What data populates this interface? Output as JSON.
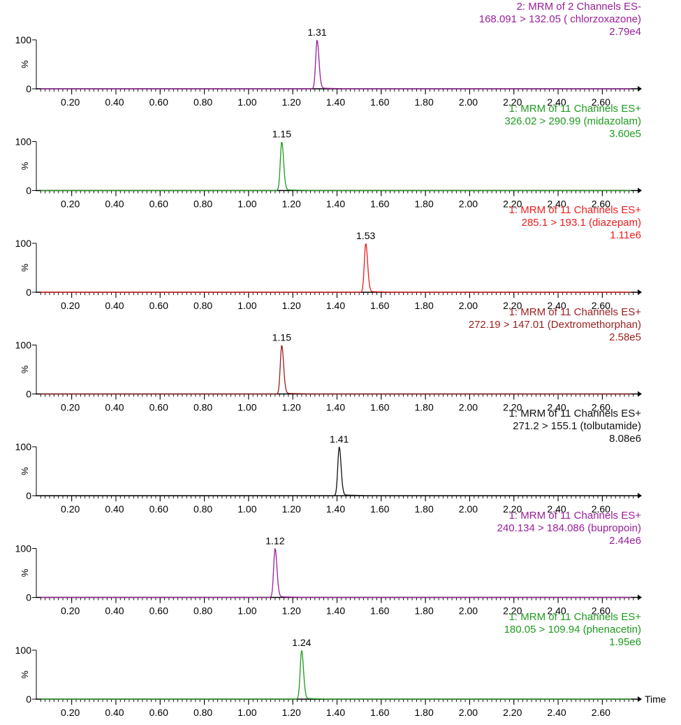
{
  "chart_data": [
    {
      "type": "line",
      "title_lines": [
        "2: MRM of 2 Channels ES-",
        "168.091 > 132.05 ( chlorzoxazone)",
        "2.79e4"
      ],
      "color": "#9b1e9b",
      "peak_rt": 1.31,
      "peak_label": "1.31",
      "ylabel": "%",
      "y_ticks": [
        "100",
        "0"
      ],
      "x_ticks": [
        "0.20",
        "0.40",
        "0.60",
        "0.80",
        "1.00",
        "1.20",
        "1.40",
        "1.60",
        "1.80",
        "2.00",
        "2.20",
        "2.40",
        "2.60"
      ],
      "xlim": [
        0.04,
        2.76
      ],
      "ylim": [
        0,
        100
      ],
      "xlabel": ""
    },
    {
      "type": "line",
      "title_lines": [
        "1: MRM of 11 Channels ES+",
        "326.02 > 290.99 (midazolam)",
        "3.60e5"
      ],
      "color": "#1e9b1e",
      "peak_rt": 1.15,
      "peak_label": "1.15",
      "ylabel": "%",
      "y_ticks": [
        "100",
        "0"
      ],
      "x_ticks": [
        "0.20",
        "0.40",
        "0.60",
        "0.80",
        "1.00",
        "1.20",
        "1.40",
        "1.60",
        "1.80",
        "2.00",
        "2.20",
        "2.40",
        "2.60"
      ],
      "xlim": [
        0.04,
        2.76
      ],
      "ylim": [
        0,
        100
      ],
      "xlabel": ""
    },
    {
      "type": "line",
      "title_lines": [
        "1: MRM of 11 Channels ES+",
        "285.1 > 193.1 (diazepam)",
        "1.11e6"
      ],
      "color": "#ee1c1c",
      "peak_rt": 1.53,
      "peak_label": "1.53",
      "ylabel": "%",
      "y_ticks": [
        "100",
        "0"
      ],
      "x_ticks": [
        "0.20",
        "0.40",
        "0.60",
        "0.80",
        "1.00",
        "1.20",
        "1.40",
        "1.60",
        "1.80",
        "2.00",
        "2.20",
        "2.40",
        "2.60"
      ],
      "xlim": [
        0.04,
        2.76
      ],
      "ylim": [
        0,
        100
      ],
      "xlabel": ""
    },
    {
      "type": "line",
      "title_lines": [
        "1: MRM of 11 Channels ES+",
        "272.19 > 147.01 (Dextromethorphan)",
        "2.58e5"
      ],
      "color": "#9b1e1e",
      "peak_rt": 1.15,
      "peak_label": "1.15",
      "ylabel": "%",
      "y_ticks": [
        "100",
        "0"
      ],
      "x_ticks": [
        "0.20",
        "0.40",
        "0.60",
        "0.80",
        "1.00",
        "1.20",
        "1.40",
        "1.60",
        "1.80",
        "2.00",
        "2.20",
        "2.40",
        "2.60"
      ],
      "xlim": [
        0.04,
        2.76
      ],
      "ylim": [
        0,
        100
      ],
      "xlabel": ""
    },
    {
      "type": "line",
      "title_lines": [
        "1: MRM of 11 Channels ES+",
        "271.2 > 155.1 (tolbutamide)",
        "8.08e6"
      ],
      "color": "#111111",
      "peak_rt": 1.41,
      "peak_label": "1.41",
      "ylabel": "%",
      "y_ticks": [
        "100",
        "0"
      ],
      "x_ticks": [
        "0.20",
        "0.40",
        "0.60",
        "0.80",
        "1.00",
        "1.20",
        "1.40",
        "1.60",
        "1.80",
        "2.00",
        "2.20",
        "2.40",
        "2.60"
      ],
      "xlim": [
        0.04,
        2.76
      ],
      "ylim": [
        0,
        100
      ],
      "xlabel": ""
    },
    {
      "type": "line",
      "title_lines": [
        "1: MRM of 11 Channels ES+",
        "240.134 > 184.086 (bupropoin)",
        "2.44e6"
      ],
      "color": "#9b1e9b",
      "peak_rt": 1.12,
      "peak_label": "1.12",
      "ylabel": "%",
      "y_ticks": [
        "100",
        "0"
      ],
      "x_ticks": [
        "0.20",
        "0.40",
        "0.60",
        "0.80",
        "1.00",
        "1.20",
        "1.40",
        "1.60",
        "1.80",
        "2.00",
        "2.20",
        "2.40",
        "2.60"
      ],
      "xlim": [
        0.04,
        2.76
      ],
      "ylim": [
        0,
        100
      ],
      "xlabel": ""
    },
    {
      "type": "line",
      "title_lines": [
        "1: MRM of 11 Channels ES+",
        "180.05 > 109.94 (phenacetin)",
        "1.95e6"
      ],
      "color": "#1e9b1e",
      "peak_rt": 1.24,
      "peak_label": "1.24",
      "ylabel": "%",
      "y_ticks": [
        "100",
        "0"
      ],
      "x_ticks": [
        "0.20",
        "0.40",
        "0.60",
        "0.80",
        "1.00",
        "1.20",
        "1.40",
        "1.60",
        "1.80",
        "2.00",
        "2.20",
        "2.40",
        "2.60"
      ],
      "xlim": [
        0.04,
        2.76
      ],
      "ylim": [
        0,
        100
      ],
      "xlabel": "Time"
    }
  ]
}
